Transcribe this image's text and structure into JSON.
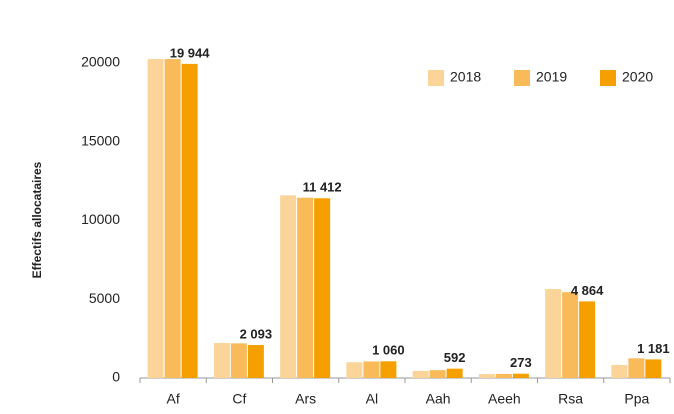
{
  "chart_data": {
    "type": "bar",
    "y_label": "Effectifs allocataires",
    "categories": [
      "Af",
      "Cf",
      "Ars",
      "Al",
      "Aah",
      "Aeeh",
      "Rsa",
      "Ppa"
    ],
    "series": [
      {
        "name": "2018",
        "color": "#fbd49a",
        "values": [
          20250,
          2220,
          11600,
          1000,
          450,
          250,
          5650,
          825
        ]
      },
      {
        "name": "2019",
        "color": "#f9bb5a",
        "values": [
          20250,
          2200,
          11450,
          1050,
          500,
          260,
          5450,
          1250
        ]
      },
      {
        "name": "2020",
        "color": "#f5a000",
        "values": [
          19944,
          2093,
          11412,
          1060,
          592,
          273,
          4864,
          1181
        ],
        "value_labels": [
          "19 944",
          "2 093",
          "11 412",
          "1 060",
          "592",
          "273",
          "4 864",
          "1 181"
        ]
      }
    ],
    "ylim": [
      0,
      20000
    ],
    "yticks": [
      0,
      5000,
      10000,
      15000,
      20000
    ],
    "grid": false,
    "legend": "top-right"
  }
}
